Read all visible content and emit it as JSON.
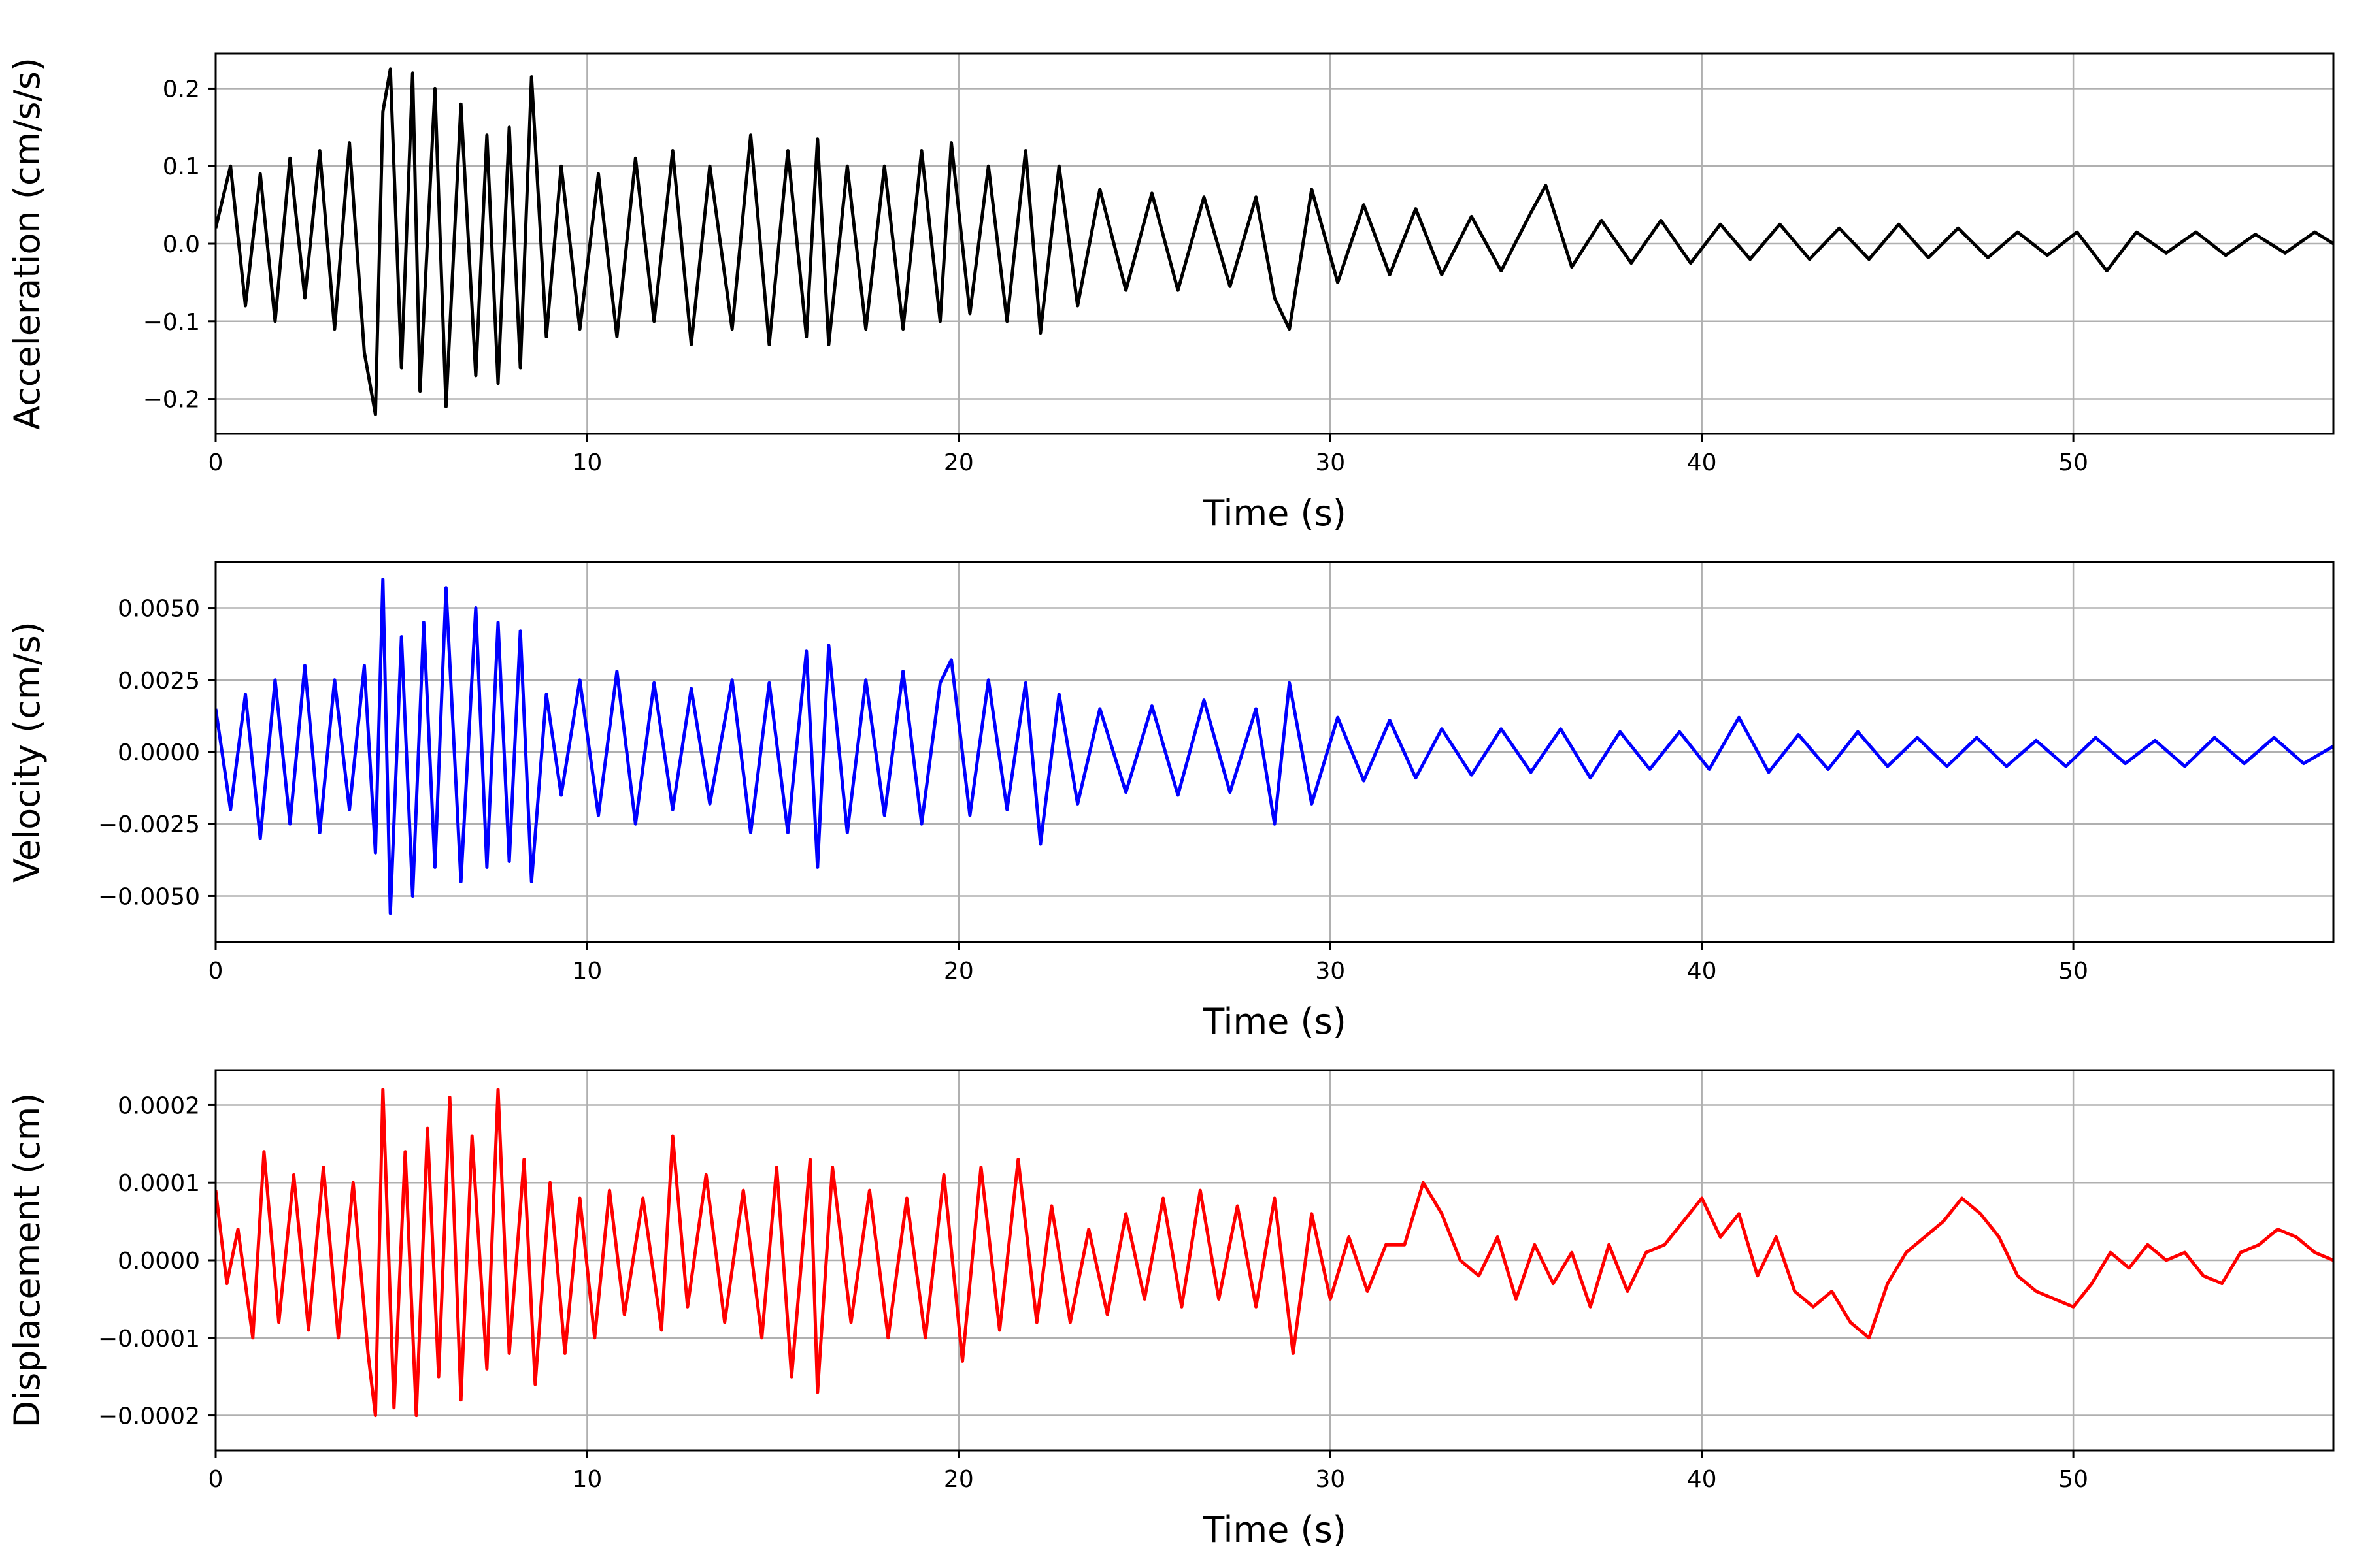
{
  "chart_data": [
    {
      "type": "line",
      "ylabel": "Acceleration (cm/s/s)",
      "xlabel": "Time (s)",
      "xlim": [
        0,
        57
      ],
      "ylim": [
        -0.245,
        0.245
      ],
      "xticks": [
        0,
        10,
        20,
        30,
        40,
        50
      ],
      "xtick_labels": [
        "0",
        "10",
        "20",
        "30",
        "40",
        "50"
      ],
      "yticks": [
        -0.2,
        -0.1,
        0.0,
        0.1,
        0.2
      ],
      "ytick_labels": [
        "−0.2",
        "−0.1",
        "0.0",
        "0.1",
        "0.2"
      ],
      "grid": true,
      "color": "#000000",
      "series": [
        {
          "x": [
            0.0,
            0.4,
            0.8,
            1.2,
            1.6,
            2.0,
            2.4,
            2.8,
            3.2,
            3.6,
            4.0,
            4.3,
            4.5,
            4.7,
            5.0,
            5.3,
            5.5,
            5.9,
            6.2,
            6.6,
            7.0,
            7.3,
            7.6,
            7.9,
            8.2,
            8.5,
            8.9,
            9.3,
            9.8,
            10.3,
            10.8,
            11.3,
            11.8,
            12.3,
            12.8,
            13.3,
            13.9,
            14.4,
            14.9,
            15.4,
            15.9,
            16.2,
            16.5,
            17.0,
            17.5,
            18.0,
            18.5,
            19.0,
            19.5,
            19.8,
            20.3,
            20.8,
            21.3,
            21.8,
            22.2,
            22.7,
            23.2,
            23.8,
            24.5,
            25.2,
            25.9,
            26.6,
            27.3,
            28.0,
            28.5,
            28.9,
            29.5,
            30.2,
            30.9,
            31.6,
            32.3,
            33.0,
            33.8,
            34.6,
            35.4,
            35.8,
            36.5,
            37.3,
            38.1,
            38.9,
            39.7,
            40.5,
            41.3,
            42.1,
            42.9,
            43.7,
            44.5,
            45.3,
            46.1,
            46.9,
            47.7,
            48.5,
            49.3,
            50.1,
            50.9,
            51.7,
            52.5,
            53.3,
            54.1,
            54.9,
            55.7,
            56.5,
            57.0
          ],
          "y": [
            0.02,
            0.1,
            -0.08,
            0.09,
            -0.1,
            0.11,
            -0.07,
            0.12,
            -0.11,
            0.13,
            -0.14,
            -0.22,
            0.17,
            0.225,
            -0.16,
            0.22,
            -0.19,
            0.2,
            -0.21,
            0.18,
            -0.17,
            0.14,
            -0.18,
            0.15,
            -0.16,
            0.215,
            -0.12,
            0.1,
            -0.11,
            0.09,
            -0.12,
            0.11,
            -0.1,
            0.12,
            -0.13,
            0.1,
            -0.11,
            0.14,
            -0.13,
            0.12,
            -0.12,
            0.135,
            -0.13,
            0.1,
            -0.11,
            0.1,
            -0.11,
            0.12,
            -0.1,
            0.13,
            -0.09,
            0.1,
            -0.1,
            0.12,
            -0.115,
            0.1,
            -0.08,
            0.07,
            -0.06,
            0.065,
            -0.06,
            0.06,
            -0.055,
            0.06,
            -0.07,
            -0.11,
            0.07,
            -0.05,
            0.05,
            -0.04,
            0.045,
            -0.04,
            0.035,
            -0.035,
            0.04,
            0.075,
            -0.03,
            0.03,
            -0.025,
            0.03,
            -0.025,
            0.025,
            -0.02,
            0.025,
            -0.02,
            0.02,
            -0.02,
            0.025,
            -0.018,
            0.02,
            -0.018,
            0.015,
            -0.015,
            0.015,
            -0.035,
            0.015,
            -0.012,
            0.015,
            -0.015,
            0.012,
            -0.012,
            0.015,
            0.0
          ]
        }
      ]
    },
    {
      "type": "line",
      "ylabel": "Velocity (cm/s)",
      "xlabel": "Time (s)",
      "xlim": [
        0,
        57
      ],
      "ylim": [
        -0.0066,
        0.0066
      ],
      "xticks": [
        0,
        10,
        20,
        30,
        40,
        50
      ],
      "xtick_labels": [
        "0",
        "10",
        "20",
        "30",
        "40",
        "50"
      ],
      "yticks": [
        -0.005,
        -0.0025,
        0.0,
        0.0025,
        0.005
      ],
      "ytick_labels": [
        "−0.0050",
        "−0.0025",
        "0.0000",
        "0.0025",
        "0.0050"
      ],
      "grid": true,
      "color": "#0000ff",
      "series": [
        {
          "x": [
            0.0,
            0.4,
            0.8,
            1.2,
            1.6,
            2.0,
            2.4,
            2.8,
            3.2,
            3.6,
            4.0,
            4.3,
            4.5,
            4.7,
            5.0,
            5.3,
            5.6,
            5.9,
            6.2,
            6.6,
            7.0,
            7.3,
            7.6,
            7.9,
            8.2,
            8.5,
            8.9,
            9.3,
            9.8,
            10.3,
            10.8,
            11.3,
            11.8,
            12.3,
            12.8,
            13.3,
            13.9,
            14.4,
            14.9,
            15.4,
            15.9,
            16.2,
            16.5,
            17.0,
            17.5,
            18.0,
            18.5,
            19.0,
            19.5,
            19.8,
            20.3,
            20.8,
            21.3,
            21.8,
            22.2,
            22.7,
            23.2,
            23.8,
            24.5,
            25.2,
            25.9,
            26.6,
            27.3,
            28.0,
            28.5,
            28.9,
            29.5,
            30.2,
            30.9,
            31.6,
            32.3,
            33.0,
            33.8,
            34.6,
            35.4,
            36.2,
            37.0,
            37.8,
            38.6,
            39.4,
            40.2,
            41.0,
            41.8,
            42.6,
            43.4,
            44.2,
            45.0,
            45.8,
            46.6,
            47.4,
            48.2,
            49.0,
            49.8,
            50.6,
            51.4,
            52.2,
            53.0,
            53.8,
            54.6,
            55.4,
            56.2,
            57.0
          ],
          "y": [
            0.0015,
            -0.002,
            0.002,
            -0.003,
            0.0025,
            -0.0025,
            0.003,
            -0.0028,
            0.0025,
            -0.002,
            0.003,
            -0.0035,
            0.006,
            -0.0056,
            0.004,
            -0.005,
            0.0045,
            -0.004,
            0.0057,
            -0.0045,
            0.005,
            -0.004,
            0.0045,
            -0.0038,
            0.0042,
            -0.0045,
            0.002,
            -0.0015,
            0.0025,
            -0.0022,
            0.0028,
            -0.0025,
            0.0024,
            -0.002,
            0.0022,
            -0.0018,
            0.0025,
            -0.0028,
            0.0024,
            -0.0028,
            0.0035,
            -0.004,
            0.0037,
            -0.0028,
            0.0025,
            -0.0022,
            0.0028,
            -0.0025,
            0.0024,
            0.0032,
            -0.0022,
            0.0025,
            -0.002,
            0.0024,
            -0.0032,
            0.002,
            -0.0018,
            0.0015,
            -0.0014,
            0.0016,
            -0.0015,
            0.0018,
            -0.0014,
            0.0015,
            -0.0025,
            0.0024,
            -0.0018,
            0.0012,
            -0.001,
            0.0011,
            -0.0009,
            0.0008,
            -0.0008,
            0.0008,
            -0.0007,
            0.0008,
            -0.0009,
            0.0007,
            -0.0006,
            0.0007,
            -0.0006,
            0.0012,
            -0.0007,
            0.0006,
            -0.0006,
            0.0007,
            -0.0005,
            0.0005,
            -0.0005,
            0.0005,
            -0.0005,
            0.0004,
            -0.0005,
            0.0005,
            -0.0004,
            0.0004,
            -0.0005,
            0.0005,
            -0.0004,
            0.0005,
            -0.0004,
            0.0002
          ]
        }
      ]
    },
    {
      "type": "line",
      "ylabel": "Displacement (cm)",
      "xlabel": "Time (s)",
      "xlim": [
        0,
        57
      ],
      "ylim": [
        -0.000245,
        0.000245
      ],
      "xticks": [
        0,
        10,
        20,
        30,
        40,
        50
      ],
      "xtick_labels": [
        "0",
        "10",
        "20",
        "30",
        "40",
        "50"
      ],
      "yticks": [
        -0.0002,
        -0.0001,
        0.0,
        0.0001,
        0.0002
      ],
      "ytick_labels": [
        "−0.0002",
        "−0.0001",
        "0.0000",
        "0.0001",
        "0.0002"
      ],
      "grid": true,
      "color": "#ff0000",
      "series": [
        {
          "x": [
            0.0,
            0.3,
            0.6,
            1.0,
            1.3,
            1.7,
            2.1,
            2.5,
            2.9,
            3.3,
            3.7,
            4.1,
            4.3,
            4.5,
            4.8,
            5.1,
            5.4,
            5.7,
            6.0,
            6.3,
            6.6,
            6.9,
            7.3,
            7.6,
            7.9,
            8.3,
            8.6,
            9.0,
            9.4,
            9.8,
            10.2,
            10.6,
            11.0,
            11.5,
            12.0,
            12.3,
            12.7,
            13.2,
            13.7,
            14.2,
            14.7,
            15.1,
            15.5,
            16.0,
            16.2,
            16.6,
            17.1,
            17.6,
            18.1,
            18.6,
            19.1,
            19.6,
            20.1,
            20.6,
            21.1,
            21.6,
            22.1,
            22.5,
            23.0,
            23.5,
            24.0,
            24.5,
            25.0,
            25.5,
            26.0,
            26.5,
            27.0,
            27.5,
            28.0,
            28.5,
            29.0,
            29.5,
            30.0,
            30.5,
            31.0,
            31.5,
            32.0,
            32.5,
            33.0,
            33.5,
            34.0,
            34.5,
            35.0,
            35.5,
            36.0,
            36.5,
            37.0,
            37.5,
            38.0,
            38.5,
            39.0,
            39.5,
            40.0,
            40.5,
            41.0,
            41.5,
            42.0,
            42.5,
            43.0,
            43.5,
            44.0,
            44.5,
            45.0,
            45.5,
            46.0,
            46.5,
            47.0,
            47.5,
            48.0,
            48.5,
            49.0,
            49.5,
            50.0,
            50.5,
            51.0,
            51.5,
            52.0,
            52.5,
            53.0,
            53.5,
            54.0,
            54.5,
            55.0,
            55.5,
            56.0,
            56.5,
            57.0
          ],
          "y": [
            9e-05,
            -3e-05,
            4e-05,
            -0.0001,
            0.00014,
            -8e-05,
            0.00011,
            -9e-05,
            0.00012,
            -0.0001,
            0.0001,
            -0.00012,
            -0.0002,
            0.00022,
            -0.00019,
            0.00014,
            -0.0002,
            0.00017,
            -0.00015,
            0.00021,
            -0.00018,
            0.00016,
            -0.00014,
            0.00022,
            -0.00012,
            0.00013,
            -0.00016,
            0.0001,
            -0.00012,
            8e-05,
            -0.0001,
            9e-05,
            -7e-05,
            8e-05,
            -9e-05,
            0.00016,
            -6e-05,
            0.00011,
            -8e-05,
            9e-05,
            -0.0001,
            0.00012,
            -0.00015,
            0.00013,
            -0.00017,
            0.00012,
            -8e-05,
            9e-05,
            -0.0001,
            8e-05,
            -0.0001,
            0.00011,
            -0.00013,
            0.00012,
            -9e-05,
            0.00013,
            -8e-05,
            7e-05,
            -8e-05,
            4e-05,
            -7e-05,
            6e-05,
            -5e-05,
            8e-05,
            -6e-05,
            9e-05,
            -5e-05,
            7e-05,
            -6e-05,
            8e-05,
            -0.00012,
            6e-05,
            -5e-05,
            3e-05,
            -4e-05,
            2e-05,
            2e-05,
            0.0001,
            6e-05,
            0.0,
            -2e-05,
            3e-05,
            -5e-05,
            2e-05,
            -3e-05,
            1e-05,
            -6e-05,
            2e-05,
            -4e-05,
            1e-05,
            2e-05,
            5e-05,
            8e-05,
            3e-05,
            6e-05,
            -2e-05,
            3e-05,
            -4e-05,
            -6e-05,
            -4e-05,
            -8e-05,
            -0.0001,
            -3e-05,
            1e-05,
            3e-05,
            5e-05,
            8e-05,
            6e-05,
            3e-05,
            -2e-05,
            -4e-05,
            -5e-05,
            -6e-05,
            -3e-05,
            1e-05,
            -1e-05,
            2e-05,
            0.0,
            1e-05,
            -2e-05,
            -3e-05,
            1e-05,
            2e-05,
            4e-05,
            3e-05,
            1e-05,
            0.0
          ]
        }
      ]
    }
  ]
}
